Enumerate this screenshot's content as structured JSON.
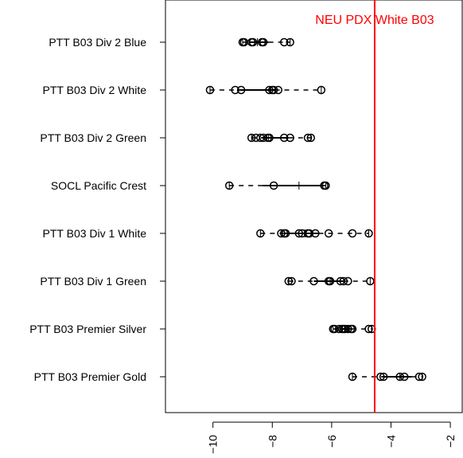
{
  "chart_data": {
    "type": "box-strip",
    "title": "",
    "xlabel": "",
    "ylabel": "",
    "xlim": [
      -11.6,
      -1.6
    ],
    "xticks": [
      -10,
      -8,
      -6,
      -4,
      -2
    ],
    "xtick_labels": [
      "-10",
      "-8",
      "-6",
      "-4",
      "-2"
    ],
    "grid": false,
    "categories": [
      "PTT B03 Div 2 Blue",
      "PTT B03 Div 2 White",
      "PTT B03 Div 2 Green",
      "SOCL Pacific Crest",
      "PTT B03 Div 1 White",
      "PTT B03 Div 1 Green",
      "PTT B03 Premier Silver",
      "PTT B03 Premier Gold"
    ],
    "series": [
      {
        "values": [
          -9.0,
          -8.95,
          -8.7,
          -8.65,
          -8.35,
          -8.3,
          -7.6,
          -7.4
        ]
      },
      {
        "values": [
          -10.1,
          -9.25,
          -9.05,
          -8.1,
          -8.0,
          -7.95,
          -7.8,
          -6.35
        ]
      },
      {
        "values": [
          -8.7,
          -8.55,
          -8.4,
          -8.3,
          -8.15,
          -8.1,
          -7.6,
          -7.4,
          -6.8,
          -6.7
        ]
      },
      {
        "values": [
          -9.45,
          -7.95,
          -6.25,
          -6.2
        ]
      },
      {
        "values": [
          -8.4,
          -7.7,
          -7.6,
          -7.55,
          -7.1,
          -7.0,
          -6.8,
          -6.75,
          -6.55,
          -6.1,
          -5.3,
          -4.75
        ]
      },
      {
        "values": [
          -7.45,
          -7.35,
          -6.6,
          -6.1,
          -6.05,
          -5.7,
          -5.6,
          -5.45,
          -4.7
        ]
      },
      {
        "values": [
          -5.95,
          -5.9,
          -5.75,
          -5.65,
          -5.6,
          -5.55,
          -5.45,
          -5.35,
          -5.3,
          -4.75,
          -4.65
        ]
      },
      {
        "values": [
          -5.3,
          -4.35,
          -4.25,
          -3.7,
          -3.55,
          -3.05,
          -2.95
        ]
      }
    ],
    "reference_line": {
      "value": -4.55,
      "label": "NEU PDX White B03",
      "color": "#ff0000"
    }
  }
}
